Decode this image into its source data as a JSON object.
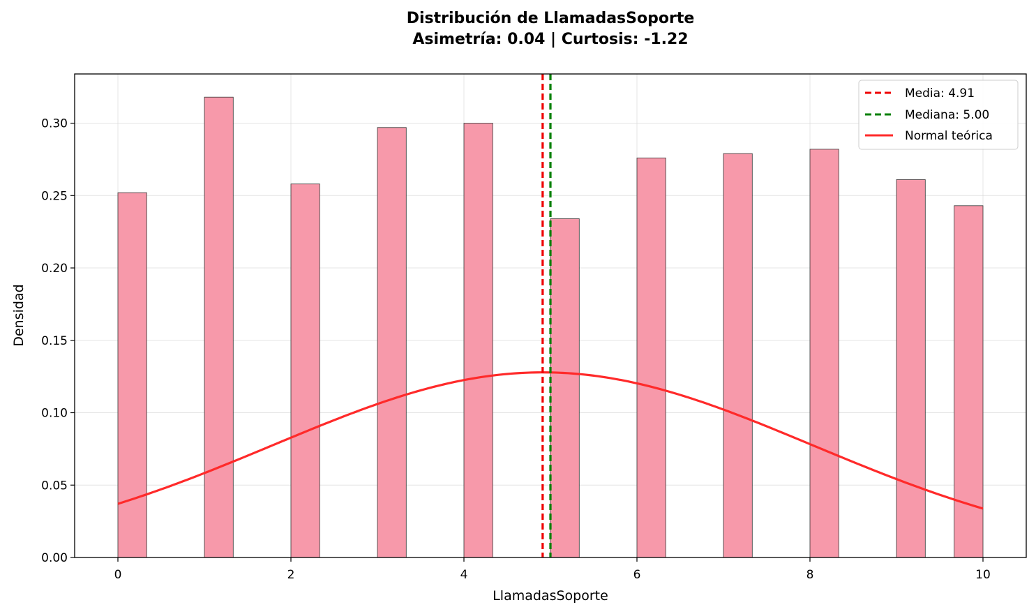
{
  "chart_data": {
    "type": "bar",
    "title": "Distribución de LlamadasSoporte",
    "subtitle": "Asimetría: 0.04 | Curtosis: -1.22",
    "xlabel": "LlamadasSoporte",
    "ylabel": "Densidad",
    "xlim": [
      -0.5,
      10.5
    ],
    "ylim": [
      0,
      0.334
    ],
    "xticks": [
      0,
      2,
      4,
      6,
      8,
      10
    ],
    "yticks": [
      0.0,
      0.05,
      0.1,
      0.15,
      0.2,
      0.25,
      0.3
    ],
    "grid": true,
    "bar_color": "#f799aa",
    "bar_edge_color": "#333333",
    "bins": [
      {
        "x0": 0.0,
        "x1": 0.333,
        "density": 0.252
      },
      {
        "x0": 1.0,
        "x1": 1.333,
        "density": 0.318
      },
      {
        "x0": 2.0,
        "x1": 2.333,
        "density": 0.258
      },
      {
        "x0": 3.0,
        "x1": 3.333,
        "density": 0.297
      },
      {
        "x0": 4.0,
        "x1": 4.333,
        "density": 0.3
      },
      {
        "x0": 5.0,
        "x1": 5.333,
        "density": 0.234
      },
      {
        "x0": 6.0,
        "x1": 6.333,
        "density": 0.276
      },
      {
        "x0": 7.0,
        "x1": 7.333,
        "density": 0.279
      },
      {
        "x0": 8.0,
        "x1": 8.333,
        "density": 0.282
      },
      {
        "x0": 9.0,
        "x1": 9.333,
        "density": 0.261
      },
      {
        "x0": 9.667,
        "x1": 10.0,
        "density": 0.243
      }
    ],
    "mean_line": {
      "label": "Media: 4.91",
      "value": 4.91,
      "color": "#ee0000"
    },
    "median_line": {
      "label": "Mediana: 5.00",
      "value": 5.0,
      "color": "#008000"
    },
    "normal_curve": {
      "label": "Normal teórica",
      "mu": 4.91,
      "sigma": 3.12,
      "x_range": [
        0,
        10
      ],
      "color": "#ff2a2a"
    },
    "legend_position": "top-right"
  }
}
